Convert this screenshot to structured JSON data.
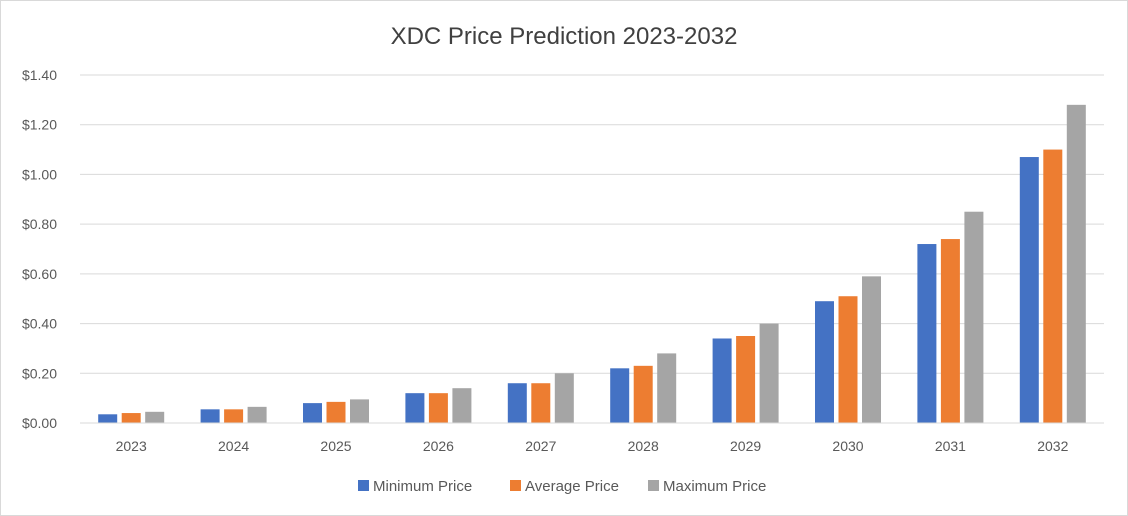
{
  "chart_data": {
    "type": "bar",
    "title": "XDC  Price Prediction 2023-2032",
    "xlabel": "",
    "ylabel": "",
    "categories": [
      "2023",
      "2024",
      "2025",
      "2026",
      "2027",
      "2028",
      "2029",
      "2030",
      "2031",
      "2032"
    ],
    "y_ticks": [
      "$0.00",
      "$0.20",
      "$0.40",
      "$0.60",
      "$0.80",
      "$1.00",
      "$1.20",
      "$1.40"
    ],
    "ylim": [
      0,
      1.4
    ],
    "grid": true,
    "legend_position": "bottom",
    "series": [
      {
        "name": "Minimum Price",
        "color": "#4472c4",
        "values": [
          0.035,
          0.055,
          0.08,
          0.12,
          0.16,
          0.22,
          0.34,
          0.49,
          0.72,
          1.07
        ]
      },
      {
        "name": "Average Price",
        "color": "#ed7d31",
        "values": [
          0.04,
          0.055,
          0.085,
          0.12,
          0.16,
          0.23,
          0.35,
          0.51,
          0.74,
          1.1
        ]
      },
      {
        "name": "Maximum Price",
        "color": "#a5a5a5",
        "values": [
          0.045,
          0.065,
          0.095,
          0.14,
          0.2,
          0.28,
          0.4,
          0.59,
          0.85,
          1.28
        ]
      }
    ]
  }
}
